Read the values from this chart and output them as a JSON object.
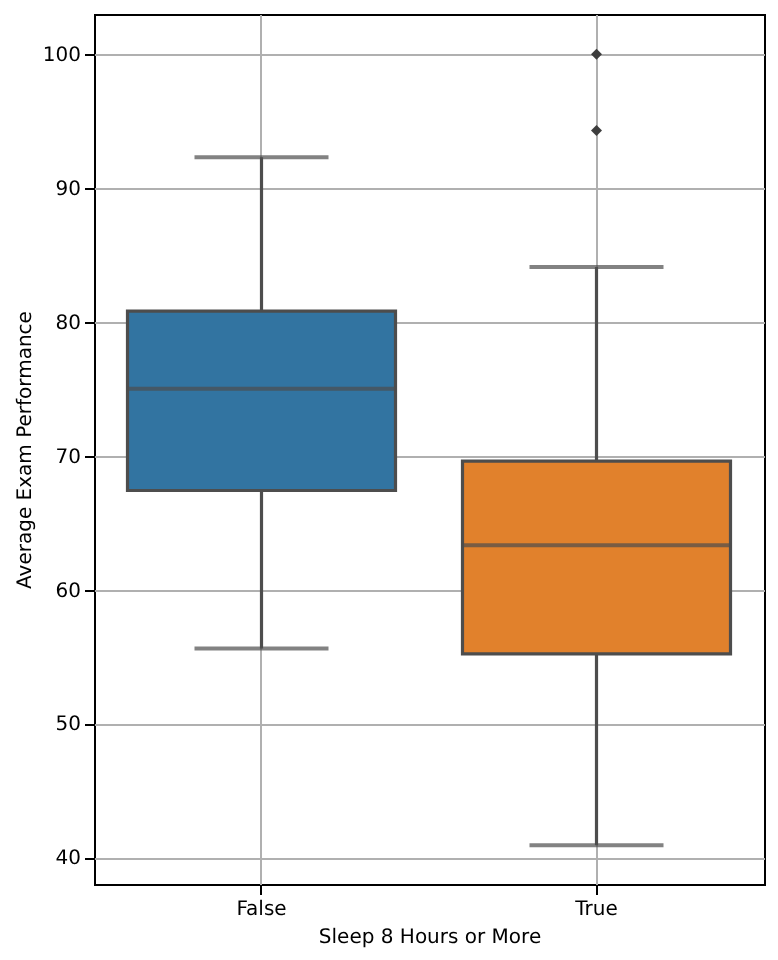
{
  "chart_data": {
    "type": "box",
    "xlabel": "Sleep 8 Hours or More",
    "ylabel": "Average Exam Performance",
    "categories": [
      "False",
      "True"
    ],
    "series": [
      {
        "colors": [
          "#3274a1",
          "#e1812c"
        ],
        "boxes": [
          {
            "low": 55.6,
            "q1": 67.4,
            "median": 75.0,
            "q3": 80.8,
            "high": 92.3
          },
          {
            "low": 40.9,
            "q1": 55.2,
            "median": 63.3,
            "q3": 69.6,
            "high": 84.1,
            "outliers": [
              94.3,
              100
            ]
          }
        ]
      }
    ],
    "ylim": [
      38,
      103
    ],
    "yticks": [
      40,
      50,
      60,
      70,
      80,
      90,
      100
    ],
    "grid": true
  }
}
